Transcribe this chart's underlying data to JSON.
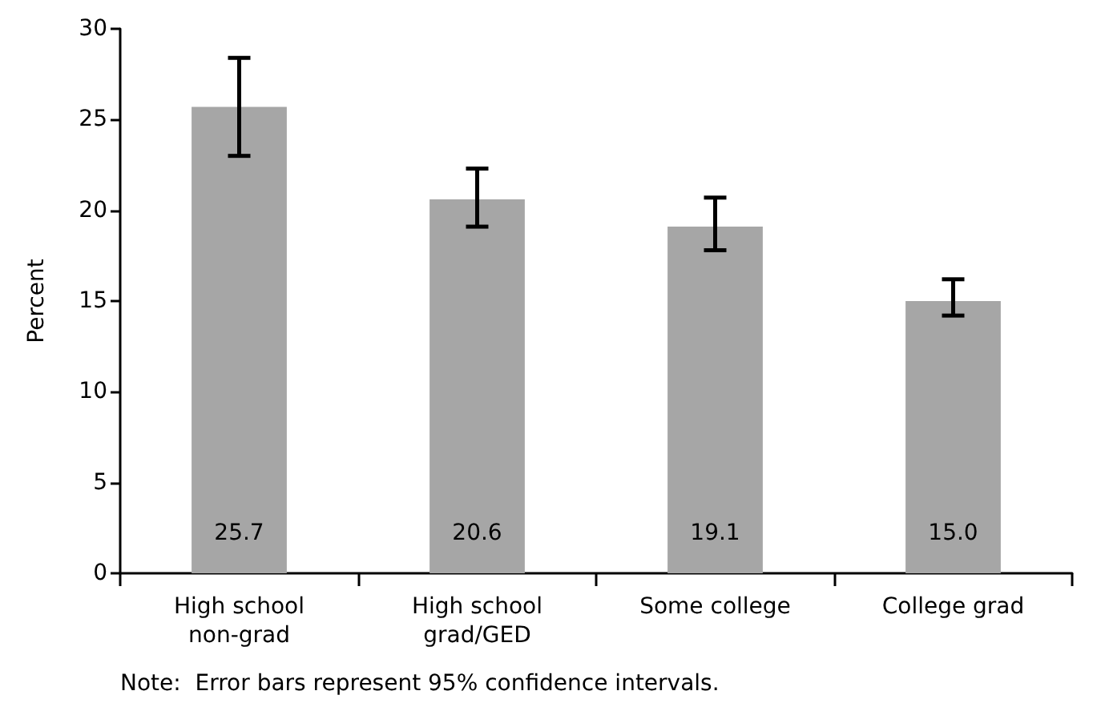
{
  "chart_data": {
    "type": "bar",
    "ylabel": "Percent",
    "categories": [
      "High school\nnon-grad",
      "High school\ngrad/GED",
      "Some college",
      "College grad"
    ],
    "values": [
      25.7,
      20.6,
      19.1,
      15.0
    ],
    "value_labels": [
      "25.7",
      "20.6",
      "19.1",
      "15.0"
    ],
    "errors": [
      [
        23.0,
        28.4
      ],
      [
        19.1,
        22.3
      ],
      [
        17.8,
        20.7
      ],
      [
        14.2,
        16.2
      ]
    ],
    "color": "#a6a6a6",
    "ylim": [
      0,
      30
    ],
    "yticks": [
      0,
      5,
      10,
      15,
      20,
      25,
      30
    ],
    "grid": false,
    "annotations": [
      "Note:  Error bars represent 95% confidence intervals."
    ]
  }
}
